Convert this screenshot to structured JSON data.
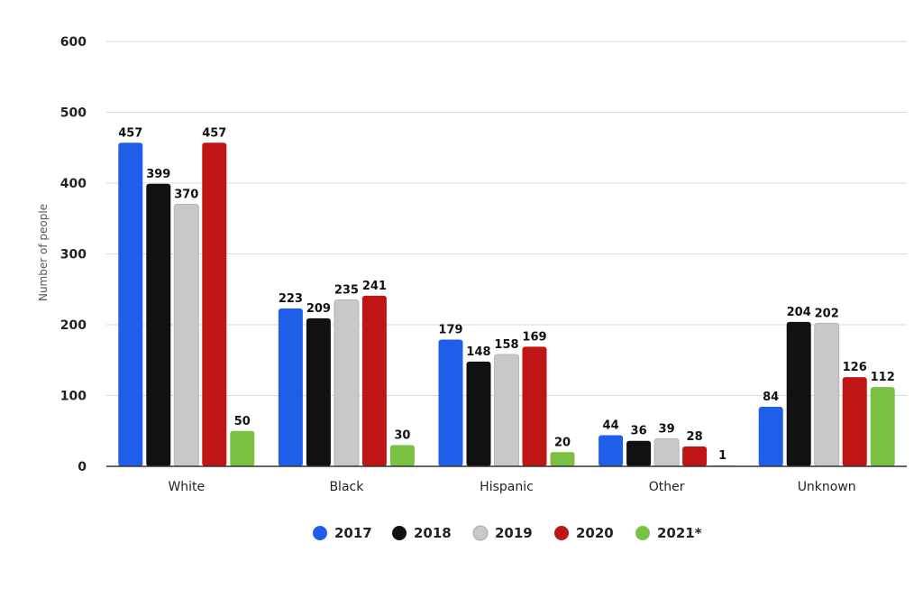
{
  "chart_data": {
    "type": "bar",
    "ylabel": "Number of people",
    "xlabel": "",
    "ylim": [
      0,
      600
    ],
    "yticks": [
      0,
      100,
      200,
      300,
      400,
      500,
      600
    ],
    "grid": true,
    "legend_position": "bottom",
    "categories": [
      "White",
      "Black",
      "Hispanic",
      "Other",
      "Unknown"
    ],
    "series": [
      {
        "name": "2017",
        "color": "#1f5ee8",
        "values": [
          457,
          223,
          179,
          44,
          84
        ]
      },
      {
        "name": "2018",
        "color": "#111111",
        "values": [
          399,
          209,
          148,
          36,
          204
        ]
      },
      {
        "name": "2019",
        "color": "#c8c8c8",
        "values": [
          370,
          235,
          158,
          39,
          202
        ]
      },
      {
        "name": "2020",
        "color": "#c01515",
        "values": [
          457,
          241,
          169,
          28,
          126
        ]
      },
      {
        "name": "2021*",
        "color": "#7ac142",
        "values": [
          50,
          30,
          20,
          1,
          112
        ]
      }
    ]
  }
}
